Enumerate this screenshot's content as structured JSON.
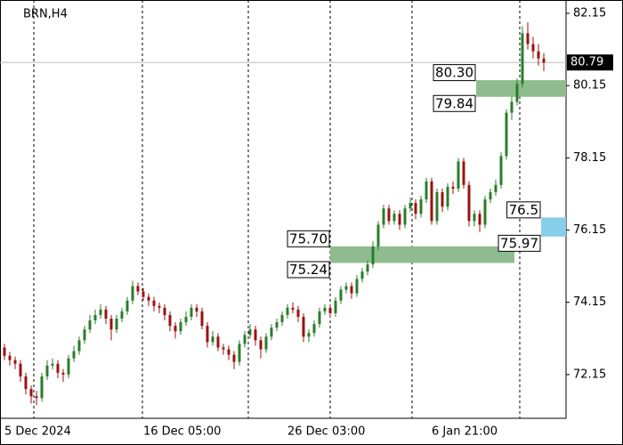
{
  "chart_data": {
    "type": "candlestick",
    "title": "BRN,H4",
    "categories": [
      "5 Dec 2024",
      null,
      null,
      null,
      null,
      null,
      null,
      null,
      null,
      null,
      null,
      null,
      null,
      null,
      null,
      null,
      null,
      null,
      null,
      null,
      null,
      null,
      null,
      null,
      null,
      null,
      "16 Dec 05:00",
      null,
      null,
      null,
      null,
      null,
      null,
      null,
      null,
      null,
      null,
      null,
      null,
      null,
      null,
      null,
      null,
      null,
      null,
      null,
      null,
      null,
      null,
      null,
      null,
      null,
      null,
      "26 Dec 03:00",
      null,
      null,
      null,
      null,
      null,
      null,
      null,
      null,
      null,
      null,
      null,
      null,
      null,
      null,
      null,
      null,
      null,
      null,
      null,
      null,
      null,
      null,
      null,
      null,
      null,
      null,
      "6 Jan 21:00",
      null,
      null,
      null,
      null,
      null,
      null,
      null,
      null,
      null,
      null,
      null,
      null,
      null,
      null,
      null,
      null,
      null,
      null,
      null,
      null,
      null
    ],
    "open": [
      72.9,
      72.67,
      72.55,
      72.45,
      72.1,
      71.75,
      71.55,
      71.5,
      72.1,
      72.4,
      72.45,
      72.2,
      72.15,
      72.6,
      72.8,
      73.1,
      73.4,
      73.65,
      73.8,
      73.95,
      73.7,
      73.4,
      73.7,
      73.9,
      74.2,
      74.6,
      74.45,
      74.3,
      74.2,
      74.05,
      74.0,
      73.8,
      73.5,
      73.35,
      73.6,
      73.75,
      74.0,
      73.9,
      73.5,
      73.05,
      73.2,
      72.9,
      72.85,
      72.7,
      72.5,
      73.0,
      73.25,
      73.4,
      73.1,
      72.85,
      73.2,
      73.45,
      73.6,
      73.8,
      74.0,
      73.95,
      73.75,
      73.2,
      73.3,
      73.55,
      73.9,
      74.0,
      73.85,
      74.2,
      74.5,
      74.6,
      74.4,
      74.8,
      75.0,
      75.2,
      75.7,
      76.3,
      76.75,
      76.4,
      76.6,
      76.3,
      76.75,
      76.9,
      76.6,
      77.0,
      77.5,
      76.4,
      77.2,
      76.8,
      77.35,
      77.3,
      78.05,
      77.4,
      76.4,
      76.6,
      76.3,
      77.0,
      77.2,
      77.4,
      78.2,
      79.4,
      79.7,
      80.2,
      81.6,
      81.3,
      81.1,
      80.9
    ],
    "high": [
      73.0,
      72.78,
      72.65,
      72.55,
      72.2,
      71.85,
      71.7,
      72.2,
      72.55,
      72.6,
      72.55,
      72.3,
      72.7,
      72.95,
      73.2,
      73.5,
      73.8,
      73.95,
      74.1,
      74.05,
      73.8,
      73.8,
      74.0,
      74.3,
      74.75,
      74.7,
      74.55,
      74.4,
      74.3,
      74.15,
      74.1,
      73.9,
      73.6,
      73.7,
      73.9,
      74.1,
      74.1,
      74.0,
      73.6,
      73.35,
      73.3,
      73.0,
      72.95,
      72.8,
      73.1,
      73.35,
      73.55,
      73.5,
      73.2,
      73.3,
      73.55,
      73.7,
      73.9,
      74.1,
      74.15,
      74.05,
      73.85,
      73.4,
      73.65,
      74.0,
      74.1,
      74.1,
      74.3,
      74.6,
      74.7,
      74.7,
      74.9,
      75.1,
      75.3,
      75.85,
      76.4,
      76.85,
      76.85,
      76.7,
      76.7,
      76.85,
      77.05,
      77.0,
      77.1,
      77.6,
      77.6,
      77.3,
      77.3,
      77.45,
      77.5,
      78.15,
      78.15,
      77.5,
      76.7,
      76.7,
      77.1,
      77.3,
      77.55,
      78.3,
      79.5,
      79.85,
      80.35,
      81.8,
      81.9,
      81.5,
      81.3,
      81.05
    ],
    "low": [
      72.55,
      72.4,
      72.3,
      71.95,
      71.6,
      71.35,
      71.3,
      71.4,
      72.0,
      72.3,
      72.05,
      71.95,
      72.05,
      72.5,
      72.7,
      73.0,
      73.3,
      73.55,
      73.7,
      73.55,
      73.1,
      73.3,
      73.6,
      73.8,
      74.1,
      74.35,
      74.2,
      74.05,
      73.9,
      73.85,
      73.65,
      73.35,
      73.15,
      73.25,
      73.5,
      73.65,
      73.75,
      73.4,
      72.9,
      72.95,
      72.8,
      72.7,
      72.55,
      72.3,
      72.4,
      72.9,
      73.15,
      72.95,
      72.6,
      72.75,
      73.1,
      73.35,
      73.5,
      73.7,
      73.85,
      73.6,
      73.05,
      73.05,
      73.2,
      73.45,
      73.8,
      73.75,
      73.75,
      74.1,
      74.4,
      74.25,
      74.3,
      74.7,
      74.9,
      75.1,
      75.6,
      76.2,
      76.3,
      76.3,
      76.15,
      76.2,
      76.65,
      76.45,
      76.5,
      76.9,
      76.3,
      76.3,
      76.65,
      76.7,
      77.15,
      77.2,
      77.3,
      76.25,
      76.25,
      76.1,
      76.2,
      76.9,
      77.1,
      77.3,
      78.1,
      79.2,
      79.6,
      80.1,
      81.15,
      80.9,
      80.7,
      80.55
    ],
    "close": [
      72.67,
      72.55,
      72.45,
      72.1,
      71.75,
      71.55,
      71.5,
      72.1,
      72.4,
      72.45,
      72.2,
      72.15,
      72.6,
      72.8,
      73.1,
      73.4,
      73.65,
      73.8,
      73.95,
      73.7,
      73.4,
      73.7,
      73.9,
      74.2,
      74.6,
      74.45,
      74.3,
      74.2,
      74.05,
      74.0,
      73.8,
      73.5,
      73.35,
      73.6,
      73.75,
      74.0,
      73.9,
      73.5,
      73.05,
      73.2,
      72.9,
      72.85,
      72.7,
      72.5,
      73.0,
      73.25,
      73.4,
      73.1,
      72.85,
      73.2,
      73.45,
      73.6,
      73.8,
      74.0,
      73.95,
      73.75,
      73.2,
      73.3,
      73.55,
      73.9,
      74.0,
      73.85,
      74.2,
      74.5,
      74.6,
      74.4,
      74.8,
      75.0,
      75.2,
      75.7,
      76.3,
      76.75,
      76.4,
      76.6,
      76.3,
      76.75,
      76.9,
      76.6,
      77.0,
      77.5,
      76.4,
      77.2,
      76.8,
      77.35,
      77.3,
      78.05,
      77.4,
      76.4,
      76.6,
      76.3,
      77.0,
      77.2,
      77.4,
      78.2,
      79.4,
      79.7,
      80.2,
      81.6,
      81.3,
      81.1,
      80.9,
      80.79
    ],
    "up_color": "#2a7d2a",
    "down_color": "#9b1111",
    "ylim": [
      70.94,
      82.52
    ],
    "yticks": [
      82.15,
      80.15,
      78.15,
      76.15,
      74.15,
      72.15
    ],
    "last_price": 80.79,
    "zones": [
      {
        "top": {
          "value": 80.3,
          "label": "80.30"
        },
        "bottom": 79.84,
        "color": "#8fbc8f"
      },
      {
        "top": {
          "value": 75.7,
          "label": "75.70"
        },
        "bottom": 75.24,
        "color": "#8fbc8f"
      },
      {
        "top": 76.5,
        "bottom": 75.97,
        "color": "#87ceeb"
      }
    ]
  }
}
